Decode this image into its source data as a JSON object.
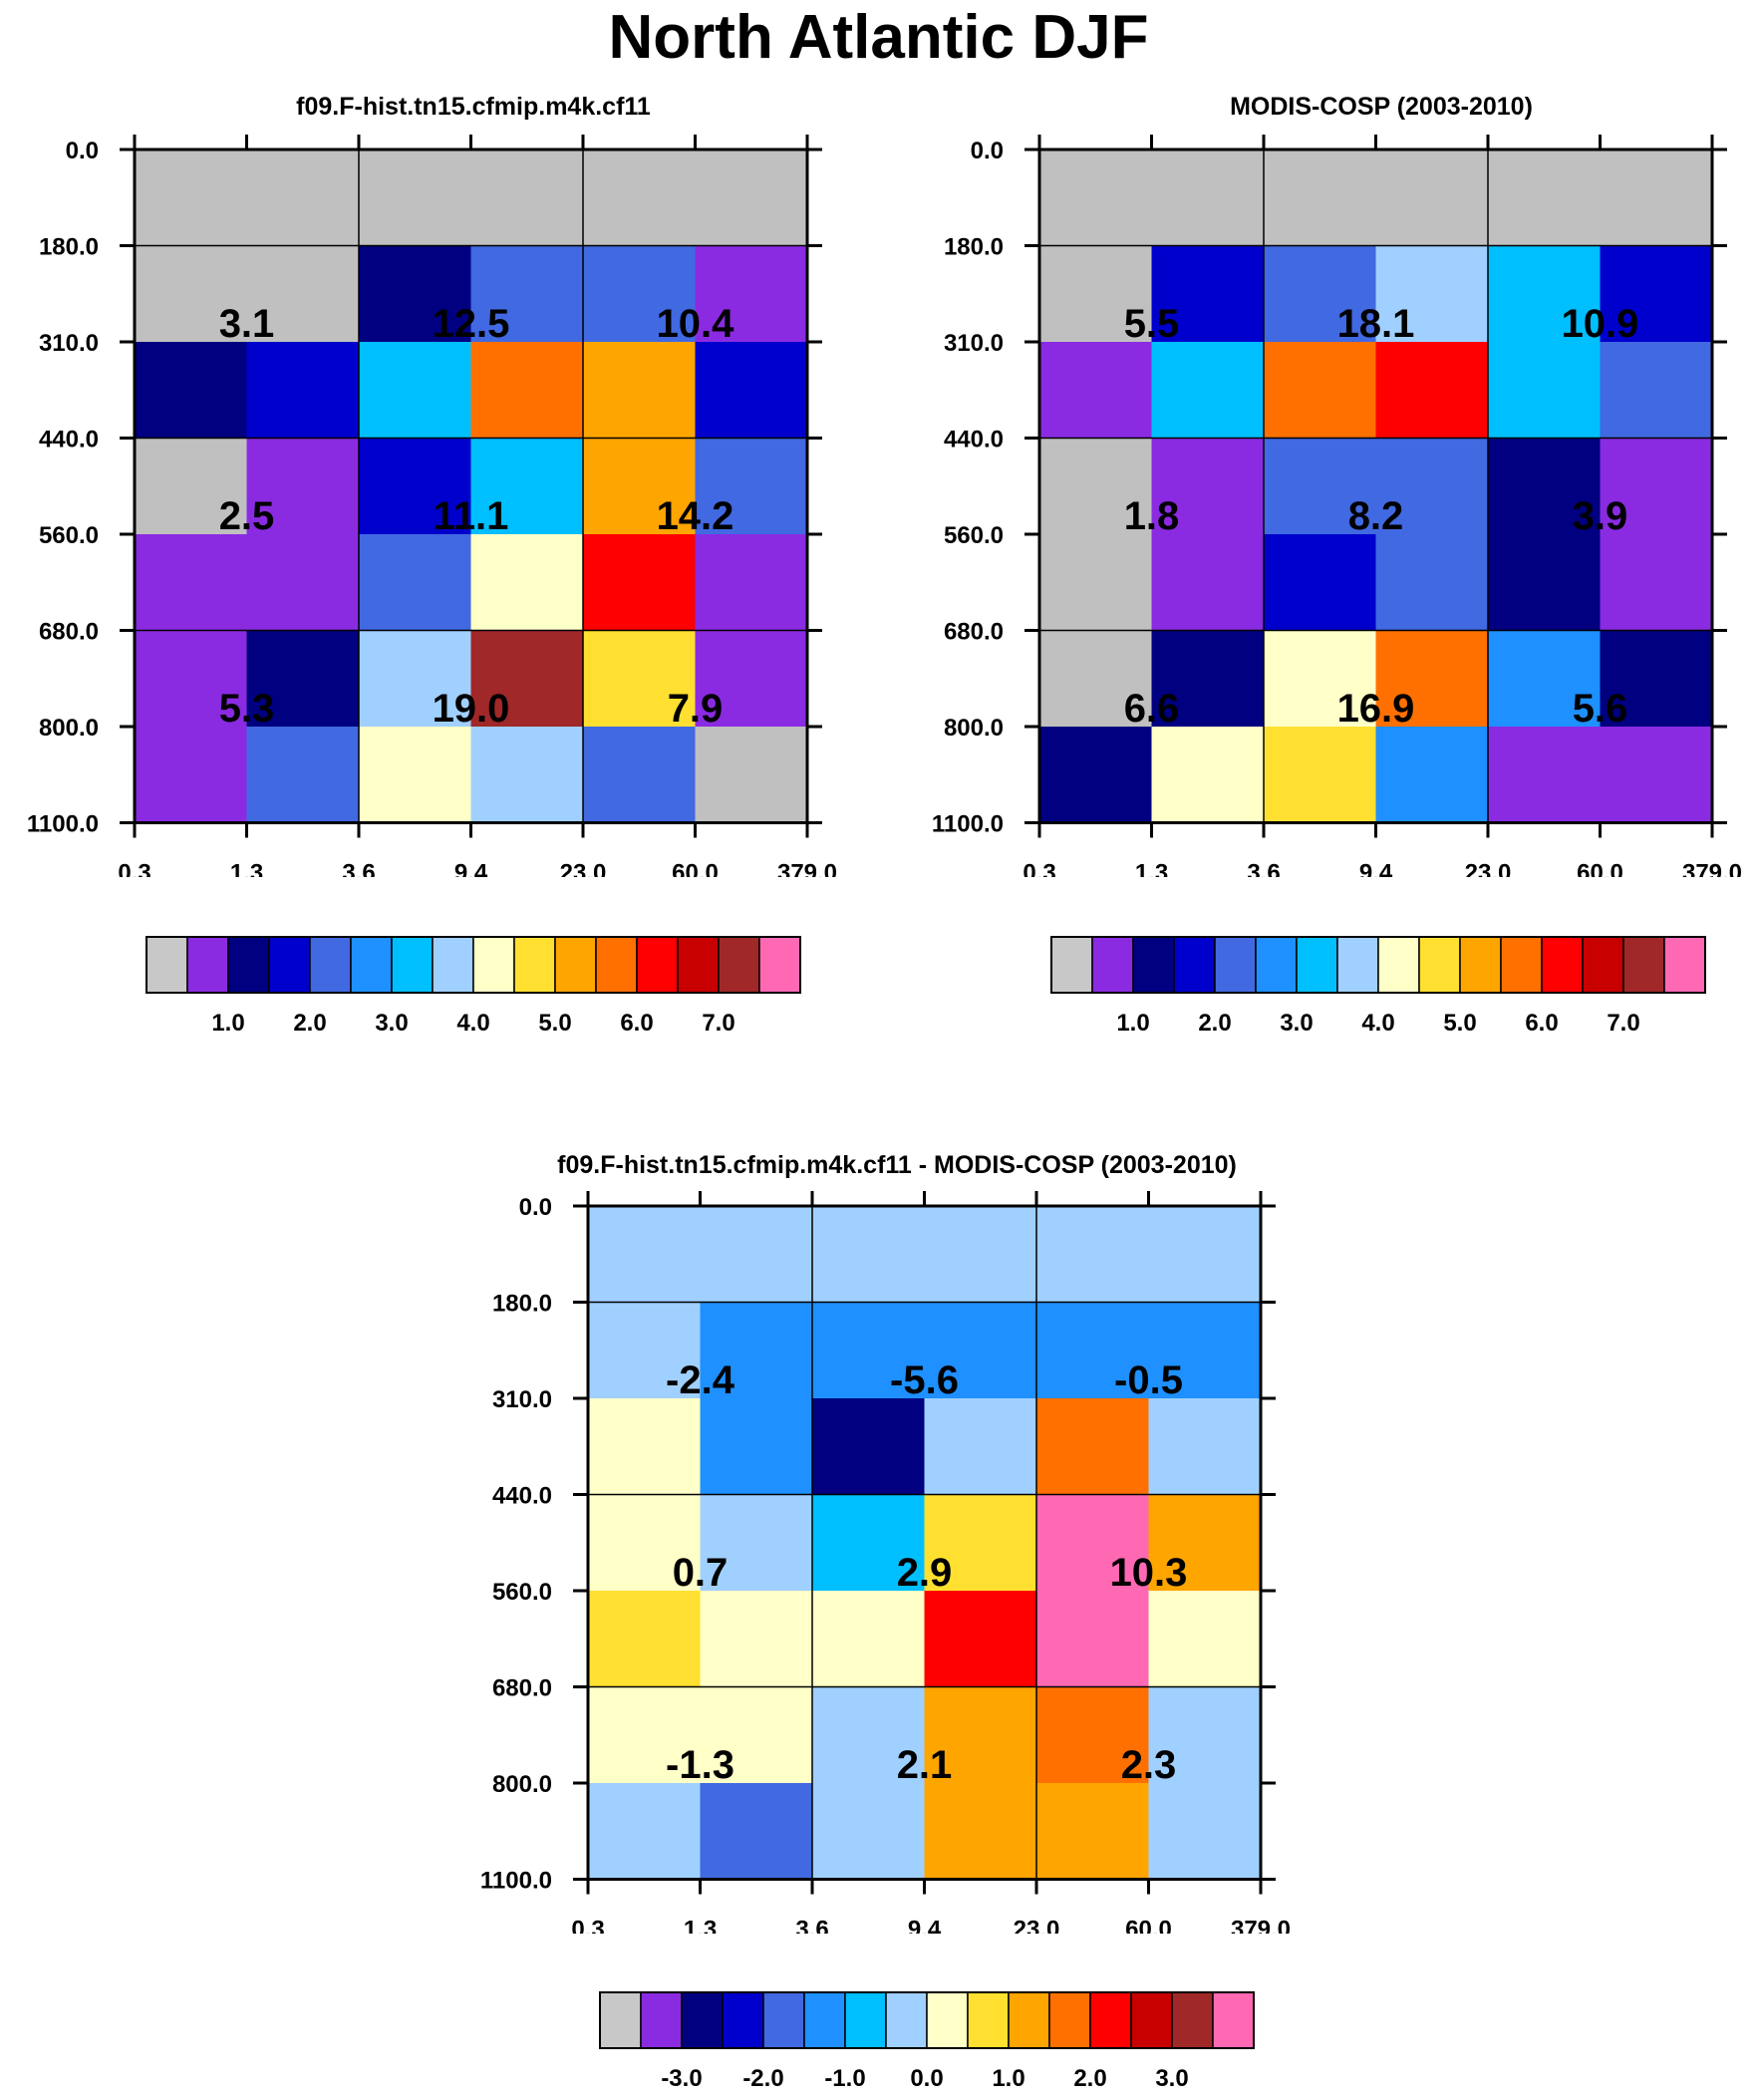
{
  "page_title": "North Atlantic DJF",
  "chart_data": [
    {
      "type": "heatmap",
      "title": "f09.F-hist.tn15.cfmip.m4k.cf11",
      "y_ticks": [
        "0.0",
        "180.0",
        "310.0",
        "440.0",
        "560.0",
        "680.0",
        "800.0",
        "1100.0"
      ],
      "x_ticks": [
        "0.3",
        "1.3",
        "3.6",
        "9.4",
        "23.0",
        "60.0",
        "379.0"
      ],
      "cells": [
        [
          "missing",
          "missing",
          "missing",
          "missing",
          "missing",
          "missing"
        ],
        [
          "missing",
          "missing",
          "#000080",
          "#4169e1",
          "#4169e1",
          "#8a2be2"
        ],
        [
          "#000080",
          "#0000cd",
          "#00bfff",
          "#ff7000",
          "#ffa500",
          "#0000cd"
        ],
        [
          "missing",
          "#8a2be2",
          "#0000cd",
          "#00bfff",
          "#ffa500",
          "#4169e1"
        ],
        [
          "#8a2be2",
          "#8a2be2",
          "#4169e1",
          "#ffffc8",
          "#ff0000",
          "#8a2be2"
        ],
        [
          "#8a2be2",
          "#000080",
          "#a0d0ff",
          "#a02828",
          "#ffe030",
          "#8a2be2"
        ],
        [
          "#8a2be2",
          "#4169e1",
          "#ffffc8",
          "#a0d0ff",
          "#4169e1",
          "missing"
        ]
      ],
      "box_values": [
        [
          "3.1",
          "12.5",
          "10.4"
        ],
        [
          "2.5",
          "11.1",
          "14.2"
        ],
        [
          "5.3",
          "19.0",
          "7.9"
        ]
      ],
      "colorbar_labels": [
        "1.0",
        "2.0",
        "3.0",
        "4.0",
        "5.0",
        "6.0",
        "7.0"
      ]
    },
    {
      "type": "heatmap",
      "title": "MODIS-COSP (2003-2010)",
      "y_ticks": [
        "0.0",
        "180.0",
        "310.0",
        "440.0",
        "560.0",
        "680.0",
        "800.0",
        "1100.0"
      ],
      "x_ticks": [
        "0.3",
        "1.3",
        "3.6",
        "9.4",
        "23.0",
        "60.0",
        "379.0"
      ],
      "cells": [
        [
          "missing",
          "missing",
          "missing",
          "missing",
          "missing",
          "missing"
        ],
        [
          "missing",
          "#0000cd",
          "#4169e1",
          "#a0d0ff",
          "#00bfff",
          "#0000cd"
        ],
        [
          "#8a2be2",
          "#00bfff",
          "#ff7000",
          "#ff0000",
          "#00bfff",
          "#4169e1"
        ],
        [
          "missing",
          "#8a2be2",
          "#4169e1",
          "#4169e1",
          "#000080",
          "#8a2be2"
        ],
        [
          "missing",
          "#8a2be2",
          "#0000cd",
          "#4169e1",
          "#000080",
          "#8a2be2"
        ],
        [
          "missing",
          "#000080",
          "#ffffc8",
          "#ff7000",
          "#1e90ff",
          "#000080"
        ],
        [
          "#000080",
          "#ffffc8",
          "#ffe030",
          "#1e90ff",
          "#8a2be2",
          "#8a2be2"
        ]
      ],
      "box_values": [
        [
          "5.5",
          "18.1",
          "10.9"
        ],
        [
          "1.8",
          "8.2",
          "3.9"
        ],
        [
          "6.6",
          "16.9",
          "5.6"
        ]
      ],
      "colorbar_labels": [
        "1.0",
        "2.0",
        "3.0",
        "4.0",
        "5.0",
        "6.0",
        "7.0"
      ]
    },
    {
      "type": "heatmap",
      "title": "f09.F-hist.tn15.cfmip.m4k.cf11 - MODIS-COSP (2003-2010)",
      "y_ticks": [
        "0.0",
        "180.0",
        "310.0",
        "440.0",
        "560.0",
        "680.0",
        "800.0",
        "1100.0"
      ],
      "x_ticks": [
        "0.3",
        "1.3",
        "3.6",
        "9.4",
        "23.0",
        "60.0",
        "379.0"
      ],
      "cells": [
        [
          "#a0d0ff",
          "#a0d0ff",
          "#a0d0ff",
          "#a0d0ff",
          "#a0d0ff",
          "#a0d0ff"
        ],
        [
          "#a0d0ff",
          "#1e90ff",
          "#1e90ff",
          "#1e90ff",
          "#1e90ff",
          "#1e90ff"
        ],
        [
          "#ffffc8",
          "#1e90ff",
          "#000080",
          "#a0d0ff",
          "#ff7000",
          "#a0d0ff"
        ],
        [
          "#ffffc8",
          "#a0d0ff",
          "#00bfff",
          "#ffe030",
          "#ff69b4",
          "#ffa500"
        ],
        [
          "#ffe030",
          "#ffffc8",
          "#ffffc8",
          "#ff0000",
          "#ff69b4",
          "#ffffc8"
        ],
        [
          "#ffffc8",
          "#ffffc8",
          "#a0d0ff",
          "#ffa500",
          "#ff7000",
          "#a0d0ff"
        ],
        [
          "#a0d0ff",
          "#4169e1",
          "#a0d0ff",
          "#ffa500",
          "#ffa500",
          "#a0d0ff"
        ]
      ],
      "box_values": [
        [
          "-2.4",
          "-5.6",
          "-0.5"
        ],
        [
          "0.7",
          "2.9",
          "10.3"
        ],
        [
          "-1.3",
          "2.1",
          "2.3"
        ]
      ],
      "colorbar_labels": [
        "-3.0",
        "-2.0",
        "-1.0",
        "0.0",
        "1.0",
        "2.0",
        "3.0"
      ]
    }
  ],
  "colorbar_colors": [
    "#c8c8c8",
    "#8a2be2",
    "#000080",
    "#0000cd",
    "#4169e1",
    "#1e90ff",
    "#00bfff",
    "#a0d0ff",
    "#ffffc8",
    "#ffe030",
    "#ffa500",
    "#ff7000",
    "#ff0000",
    "#c80000",
    "#a02828",
    "#ff69b4"
  ],
  "missing_color": "#c0c0c0"
}
